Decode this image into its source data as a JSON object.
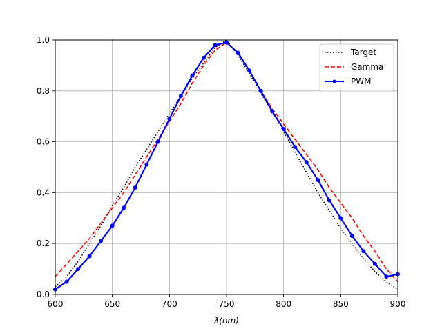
{
  "chart_data": {
    "type": "line",
    "title": "",
    "xlabel": "λ(nm)",
    "ylabel": "",
    "xlim": [
      600,
      900
    ],
    "ylim": [
      0.0,
      1.0
    ],
    "xticks": [
      600,
      650,
      700,
      750,
      800,
      850,
      900
    ],
    "yticks": [
      0.0,
      0.2,
      0.4,
      0.6,
      0.8,
      1.0
    ],
    "xtick_labels": [
      "600",
      "650",
      "700",
      "750",
      "800",
      "850",
      "900"
    ],
    "ytick_labels": [
      "0.0",
      "0.2",
      "0.4",
      "0.6",
      "0.8",
      "1.0"
    ],
    "grid": true,
    "legend_position": "top-right",
    "series": [
      {
        "name": "Target",
        "style": "dotted",
        "color": "#000000",
        "x": [
          600,
          610,
          620,
          630,
          640,
          650,
          660,
          670,
          680,
          690,
          700,
          710,
          720,
          730,
          740,
          750,
          760,
          770,
          780,
          790,
          800,
          810,
          820,
          830,
          840,
          850,
          860,
          870,
          880,
          890,
          900
        ],
        "y": [
          0.03,
          0.07,
          0.13,
          0.2,
          0.27,
          0.35,
          0.42,
          0.5,
          0.57,
          0.64,
          0.71,
          0.78,
          0.85,
          0.91,
          0.97,
          1.0,
          0.94,
          0.87,
          0.79,
          0.72,
          0.64,
          0.56,
          0.48,
          0.4,
          0.33,
          0.26,
          0.2,
          0.14,
          0.09,
          0.05,
          0.02
        ]
      },
      {
        "name": "Gamma",
        "style": "dashed",
        "color": "#ff0000",
        "x": [
          600,
          610,
          620,
          630,
          640,
          650,
          660,
          670,
          680,
          690,
          700,
          710,
          720,
          730,
          740,
          750,
          760,
          770,
          780,
          790,
          800,
          810,
          820,
          830,
          840,
          850,
          860,
          870,
          880,
          890,
          900
        ],
        "y": [
          0.07,
          0.12,
          0.17,
          0.22,
          0.28,
          0.34,
          0.4,
          0.47,
          0.54,
          0.61,
          0.68,
          0.75,
          0.83,
          0.9,
          0.96,
          0.99,
          0.95,
          0.88,
          0.8,
          0.73,
          0.67,
          0.61,
          0.55,
          0.49,
          0.42,
          0.36,
          0.3,
          0.23,
          0.17,
          0.1,
          0.05
        ]
      },
      {
        "name": "PWM",
        "style": "solid-marker",
        "color": "#0000ff",
        "x": [
          600,
          610,
          620,
          630,
          640,
          650,
          660,
          670,
          680,
          690,
          700,
          710,
          720,
          730,
          740,
          750,
          760,
          770,
          780,
          790,
          800,
          810,
          820,
          830,
          840,
          850,
          860,
          870,
          880,
          890,
          900
        ],
        "y": [
          0.02,
          0.05,
          0.1,
          0.15,
          0.21,
          0.27,
          0.34,
          0.42,
          0.51,
          0.6,
          0.69,
          0.78,
          0.86,
          0.93,
          0.98,
          0.99,
          0.95,
          0.88,
          0.8,
          0.72,
          0.65,
          0.58,
          0.52,
          0.45,
          0.37,
          0.3,
          0.23,
          0.17,
          0.12,
          0.07,
          0.08
        ]
      }
    ]
  }
}
